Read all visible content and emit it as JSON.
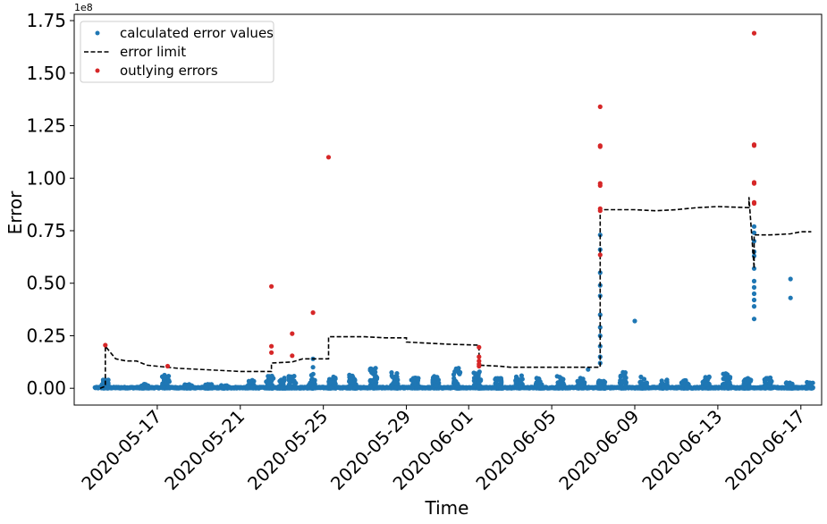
{
  "chart_data": {
    "type": "scatter",
    "xlabel": "Time",
    "ylabel": "Error",
    "y_offset_label": "1e8",
    "x_range": [
      "2020-05-13",
      "2020-06-18"
    ],
    "ylim": [
      -0.08,
      1.78
    ],
    "y_ticks": [
      0.0,
      0.25,
      0.5,
      0.75,
      1.0,
      1.25,
      1.5,
      1.75
    ],
    "y_tick_labels": [
      "0.00",
      "0.25",
      "0.50",
      "0.75",
      "1.00",
      "1.25",
      "1.50",
      "1.75"
    ],
    "x_ticks": [
      "2020-05-17",
      "2020-05-21",
      "2020-05-25",
      "2020-05-29",
      "2020-06-01",
      "2020-06-05",
      "2020-06-09",
      "2020-06-13",
      "2020-06-17"
    ],
    "grid": false,
    "legend_position": "upper-left",
    "colors": {
      "calculated": "#1f77b4",
      "limit": "#000000",
      "outlying": "#d62728"
    },
    "series": [
      {
        "name": "calculated error values",
        "marker": "dot",
        "baseline_range": [
          "2020-05-14",
          "2020-06-17T12:00"
        ],
        "clusters": [
          [
            "2020-05-14T12:00",
            0.04
          ],
          [
            "2020-05-16T10:00",
            0.02
          ],
          [
            "2020-05-17T10:00",
            0.065
          ],
          [
            "2020-05-18T12:00",
            0.02
          ],
          [
            "2020-05-19T12:00",
            0.02
          ],
          [
            "2020-05-20T06:00",
            0.015
          ],
          [
            "2020-05-21T12:00",
            0.04
          ],
          [
            "2020-05-22T10:00",
            0.06
          ],
          [
            "2020-05-23T00:00",
            0.05
          ],
          [
            "2020-05-23T12:00",
            0.06
          ],
          [
            "2020-05-24T10:00",
            0.07
          ],
          [
            "2020-05-25T10:00",
            0.06
          ],
          [
            "2020-05-26T10:00",
            0.065
          ],
          [
            "2020-05-27T10:00",
            0.1
          ],
          [
            "2020-05-28T10:00",
            0.08
          ],
          [
            "2020-05-29T10:00",
            0.05
          ],
          [
            "2020-05-30T10:00",
            0.06
          ],
          [
            "2020-05-31T10:00",
            0.1
          ],
          [
            "2020-06-01T10:00",
            0.08
          ],
          [
            "2020-06-02T10:00",
            0.05
          ],
          [
            "2020-06-03T10:00",
            0.06
          ],
          [
            "2020-06-04T10:00",
            0.05
          ],
          [
            "2020-06-05T10:00",
            0.06
          ],
          [
            "2020-06-06T10:00",
            0.05
          ],
          [
            "2020-06-07T10:00",
            0.04
          ],
          [
            "2020-06-08T10:00",
            0.08
          ],
          [
            "2020-06-09T10:00",
            0.06
          ],
          [
            "2020-06-10T10:00",
            0.04
          ],
          [
            "2020-06-11T10:00",
            0.04
          ],
          [
            "2020-06-12T10:00",
            0.06
          ],
          [
            "2020-06-13T10:00",
            0.07
          ],
          [
            "2020-06-14T10:00",
            0.05
          ],
          [
            "2020-06-15T10:00",
            0.05
          ],
          [
            "2020-06-16T10:00",
            0.03
          ],
          [
            "2020-06-17T10:00",
            0.03
          ]
        ],
        "highlights": [
          [
            "2020-05-14T12:00",
            0.04
          ],
          [
            "2020-05-14T12:00",
            0.02
          ],
          [
            "2020-05-24T12:00",
            0.14
          ],
          [
            "2020-05-24T12:00",
            0.1
          ],
          [
            "2020-06-06T18:00",
            0.09
          ],
          [
            "2020-06-07T08:00",
            0.25
          ],
          [
            "2020-06-07T08:00",
            0.35
          ],
          [
            "2020-06-07T08:00",
            0.49
          ],
          [
            "2020-06-07T08:00",
            0.66
          ],
          [
            "2020-06-07T08:00",
            0.73
          ],
          [
            "2020-06-07T08:00",
            0.55
          ],
          [
            "2020-06-07T08:00",
            0.44
          ],
          [
            "2020-06-07T08:00",
            0.29
          ],
          [
            "2020-06-07T08:00",
            0.2
          ],
          [
            "2020-06-07T08:00",
            0.15
          ],
          [
            "2020-06-07T08:00",
            0.12
          ],
          [
            "2020-06-09T00:00",
            0.32
          ],
          [
            "2020-06-14T18:00",
            0.33
          ],
          [
            "2020-06-14T18:00",
            0.39
          ],
          [
            "2020-06-14T18:00",
            0.42
          ],
          [
            "2020-06-14T18:00",
            0.45
          ],
          [
            "2020-06-14T18:00",
            0.48
          ],
          [
            "2020-06-14T18:00",
            0.51
          ],
          [
            "2020-06-14T18:00",
            0.57
          ],
          [
            "2020-06-14T18:00",
            0.63
          ],
          [
            "2020-06-14T18:00",
            0.65
          ],
          [
            "2020-06-14T18:00",
            0.7
          ],
          [
            "2020-06-14T18:00",
            0.74
          ],
          [
            "2020-06-14T18:00",
            0.77
          ],
          [
            "2020-06-16T12:00",
            0.52
          ],
          [
            "2020-06-16T12:00",
            0.43
          ]
        ]
      },
      {
        "name": "error limit",
        "line_style": "dashed",
        "points": [
          [
            "2020-05-14T06:00",
            0.0
          ],
          [
            "2020-05-14T12:00",
            0.01
          ],
          [
            "2020-05-14T12:00",
            0.2
          ],
          [
            "2020-05-15T00:00",
            0.14
          ],
          [
            "2020-05-15T12:00",
            0.13
          ],
          [
            "2020-05-16T00:00",
            0.13
          ],
          [
            "2020-05-16T12:00",
            0.11
          ],
          [
            "2020-05-18T00:00",
            0.095
          ],
          [
            "2020-05-20T00:00",
            0.085
          ],
          [
            "2020-05-21T00:00",
            0.08
          ],
          [
            "2020-05-22T12:00",
            0.08
          ],
          [
            "2020-05-22T12:00",
            0.12
          ],
          [
            "2020-05-23T12:00",
            0.125
          ],
          [
            "2020-05-24T00:00",
            0.14
          ],
          [
            "2020-05-25T06:00",
            0.14
          ],
          [
            "2020-05-25T06:00",
            0.245
          ],
          [
            "2020-05-26T00:00",
            0.245
          ],
          [
            "2020-05-27T00:00",
            0.245
          ],
          [
            "2020-05-28T00:00",
            0.24
          ],
          [
            "2020-05-29T00:00",
            0.24
          ],
          [
            "2020-05-29T00:00",
            0.22
          ],
          [
            "2020-05-30T00:00",
            0.215
          ],
          [
            "2020-05-31T00:00",
            0.21
          ],
          [
            "2020-06-01T12:00",
            0.205
          ],
          [
            "2020-06-01T12:00",
            0.11
          ],
          [
            "2020-06-02T12:00",
            0.105
          ],
          [
            "2020-06-03T00:00",
            0.1
          ],
          [
            "2020-06-05T00:00",
            0.1
          ],
          [
            "2020-06-07T08:00",
            0.1
          ],
          [
            "2020-06-07T08:00",
            0.85
          ],
          [
            "2020-06-08T00:00",
            0.85
          ],
          [
            "2020-06-09T00:00",
            0.85
          ],
          [
            "2020-06-10T00:00",
            0.845
          ],
          [
            "2020-06-11T00:00",
            0.85
          ],
          [
            "2020-06-12T00:00",
            0.86
          ],
          [
            "2020-06-13T00:00",
            0.865
          ],
          [
            "2020-06-14T12:00",
            0.86
          ],
          [
            "2020-06-14T12:00",
            0.91
          ],
          [
            "2020-06-14T18:00",
            0.57
          ],
          [
            "2020-06-14T18:00",
            0.73
          ],
          [
            "2020-06-15T12:00",
            0.73
          ],
          [
            "2020-06-16T12:00",
            0.735
          ],
          [
            "2020-06-17T00:00",
            0.745
          ],
          [
            "2020-06-17T12:00",
            0.745
          ]
        ]
      },
      {
        "name": "outlying errors",
        "marker": "dot",
        "points": [
          [
            "2020-05-14T12:00",
            0.205
          ],
          [
            "2020-05-17T12:00",
            0.105
          ],
          [
            "2020-05-22T12:00",
            0.485
          ],
          [
            "2020-05-22T12:00",
            0.2
          ],
          [
            "2020-05-22T12:00",
            0.17
          ],
          [
            "2020-05-23T12:00",
            0.26
          ],
          [
            "2020-05-23T12:00",
            0.155
          ],
          [
            "2020-05-24T12:00",
            0.36
          ],
          [
            "2020-05-25T06:00",
            1.1
          ],
          [
            "2020-06-01T12:00",
            0.195
          ],
          [
            "2020-06-01T12:00",
            0.15
          ],
          [
            "2020-06-01T12:00",
            0.13
          ],
          [
            "2020-06-01T12:00",
            0.115
          ],
          [
            "2020-06-01T12:00",
            0.105
          ],
          [
            "2020-06-07T08:00",
            1.34
          ],
          [
            "2020-06-07T08:00",
            1.155
          ],
          [
            "2020-06-07T08:00",
            1.15
          ],
          [
            "2020-06-07T08:00",
            0.975
          ],
          [
            "2020-06-07T08:00",
            0.965
          ],
          [
            "2020-06-07T08:00",
            0.855
          ],
          [
            "2020-06-07T08:00",
            0.845
          ],
          [
            "2020-06-07T08:00",
            0.635
          ],
          [
            "2020-06-14T18:00",
            1.69
          ],
          [
            "2020-06-14T18:00",
            1.16
          ],
          [
            "2020-06-14T18:00",
            1.155
          ],
          [
            "2020-06-14T18:00",
            0.98
          ],
          [
            "2020-06-14T18:00",
            0.975
          ],
          [
            "2020-06-14T18:00",
            0.885
          ],
          [
            "2020-06-14T18:00",
            0.88
          ]
        ]
      }
    ]
  }
}
